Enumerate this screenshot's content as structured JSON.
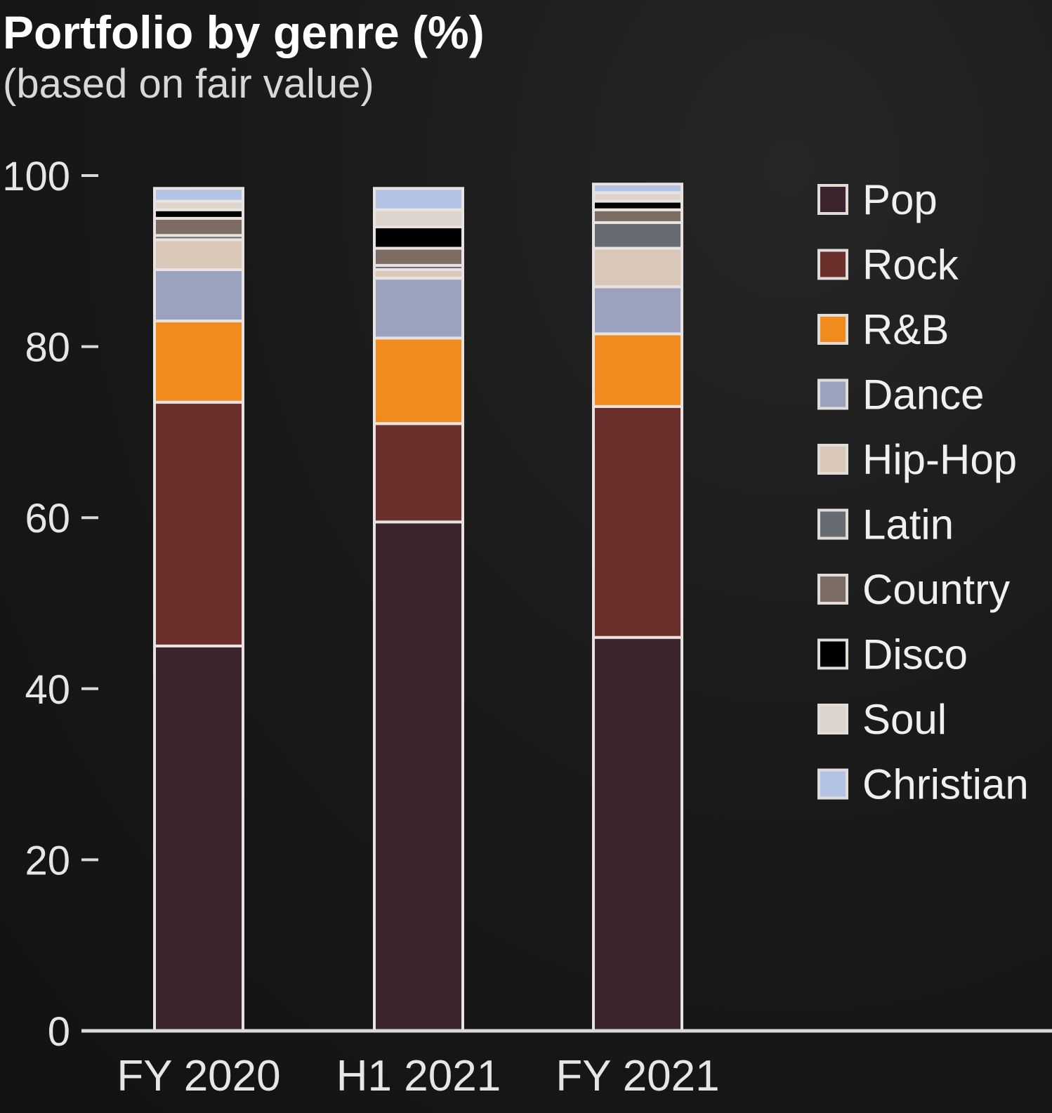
{
  "chart_data": {
    "type": "bar",
    "stacked": true,
    "title": "Portfolio by genre (%)",
    "subtitle": "(based on fair value)",
    "xlabel": "",
    "ylabel": "",
    "ylim": [
      0,
      100
    ],
    "yticks": [
      0,
      20,
      40,
      60,
      80,
      100
    ],
    "categories": [
      "FY 2020",
      "H1 2021",
      "FY 2021"
    ],
    "legend_position": "right",
    "grid": false,
    "series": [
      {
        "name": "Pop",
        "color": "#3d2530",
        "values": [
          45.0,
          59.5,
          46.0
        ]
      },
      {
        "name": "Rock",
        "color": "#6b2f2c",
        "values": [
          28.5,
          11.5,
          27.0
        ]
      },
      {
        "name": "R&B",
        "color": "#f28b1e",
        "values": [
          9.5,
          10.0,
          8.5
        ]
      },
      {
        "name": "Dance",
        "color": "#9aa2bd",
        "values": [
          6.0,
          7.0,
          5.5
        ]
      },
      {
        "name": "Hip-Hop",
        "color": "#d9c7b8",
        "values": [
          3.5,
          1.0,
          4.5
        ]
      },
      {
        "name": "Latin",
        "color": "#676b72",
        "values": [
          0.5,
          0.5,
          3.0
        ]
      },
      {
        "name": "Country",
        "color": "#7d6c64",
        "values": [
          2.0,
          2.0,
          1.5
        ]
      },
      {
        "name": "Disco",
        "color": "#000000",
        "values": [
          1.0,
          2.5,
          1.0
        ]
      },
      {
        "name": "Soul",
        "color": "#ddd5cd",
        "values": [
          1.0,
          2.0,
          1.0
        ]
      },
      {
        "name": "Christian",
        "color": "#b3c3e3",
        "values": [
          1.5,
          2.5,
          1.0
        ]
      }
    ],
    "axis_color": "#d9d9d9",
    "segment_outline_color": "#e8e3e0"
  }
}
